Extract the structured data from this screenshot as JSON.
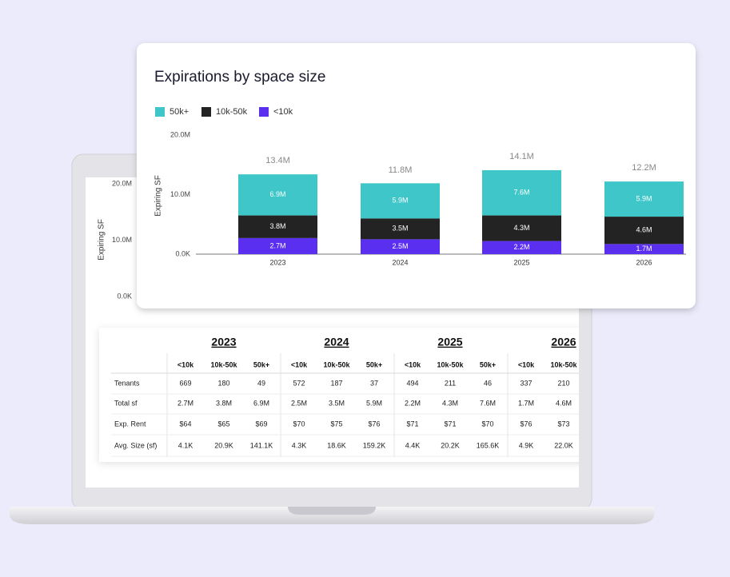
{
  "chart_data": {
    "type": "stacked_bar",
    "title": "Expirations by space size",
    "y_label": "Expiring SF",
    "categories": [
      "2023",
      "2024",
      "2025",
      "2026"
    ],
    "series": [
      {
        "name": "50k+",
        "color": "#3ec6c8",
        "values": [
          6900000,
          5900000,
          7600000,
          5900000
        ],
        "value_labels": [
          "6.9M",
          "5.9M",
          "7.6M",
          "5.9M"
        ]
      },
      {
        "name": "10k-50k",
        "color": "#232323",
        "values": [
          3800000,
          3500000,
          4300000,
          4600000
        ],
        "value_labels": [
          "3.8M",
          "3.5M",
          "4.3M",
          "4.6M"
        ]
      },
      {
        "name": "<10k",
        "color": "#5b2ff0",
        "values": [
          2700000,
          2500000,
          2200000,
          1700000
        ],
        "value_labels": [
          "2.7M",
          "2.5M",
          "2.2M",
          "1.7M"
        ]
      }
    ],
    "totals": [
      13400000,
      11800000,
      14100000,
      12200000
    ],
    "total_labels": [
      "13.4M",
      "11.8M",
      "14.1M",
      "12.2M"
    ],
    "ylim": [
      0,
      20000000
    ],
    "yticks": [
      {
        "value": 0,
        "label": "0.0K"
      },
      {
        "value": 10000000,
        "label": "10.0M"
      },
      {
        "value": 20000000,
        "label": "20.0M"
      }
    ],
    "legend": "top-left"
  },
  "background_chart": {
    "y_label": "Expiring SF",
    "ylim": [
      0,
      20000000
    ],
    "yticks": [
      {
        "value": 0,
        "label": "0.0K"
      },
      {
        "value": 10000000,
        "label": "10.0M"
      },
      {
        "value": 20000000,
        "label": "20.0M"
      }
    ]
  },
  "table": {
    "years": [
      "2023",
      "2024",
      "2025",
      "2026"
    ],
    "subheaders": [
      "<10k",
      "10k-50k",
      "50k+",
      "<10k",
      "10k-50k",
      "50k+",
      "<10k",
      "10k-50k",
      "50k+",
      "<10k",
      "10k-50k"
    ],
    "rows": [
      [
        "Tenants",
        "669",
        "180",
        "49",
        "572",
        "187",
        "37",
        "494",
        "211",
        "46",
        "337",
        "210"
      ],
      [
        "Total sf",
        "2.7M",
        "3.8M",
        "6.9M",
        "2.5M",
        "3.5M",
        "5.9M",
        "2.2M",
        "4.3M",
        "7.6M",
        "1.7M",
        "4.6M"
      ],
      [
        "Exp. Rent",
        "$64",
        "$65",
        "$69",
        "$70",
        "$75",
        "$76",
        "$71",
        "$71",
        "$70",
        "$76",
        "$73"
      ],
      [
        "Avg. Size (sf)",
        "4.1K",
        "20.9K",
        "141.1K",
        "4.3K",
        "18.6K",
        "159.2K",
        "4.4K",
        "20.2K",
        "165.6K",
        "4.9K",
        "22.0K"
      ]
    ]
  }
}
